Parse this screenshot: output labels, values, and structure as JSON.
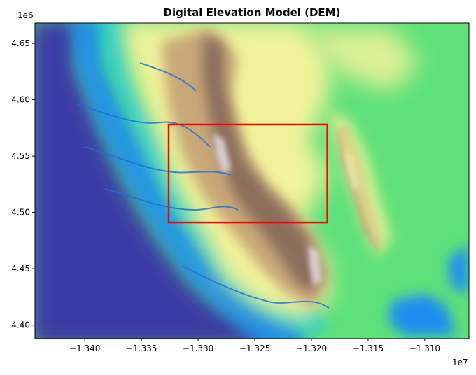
{
  "chart_data": {
    "type": "heatmap",
    "title": "Digital Elevation Model (DEM)",
    "xlabel": "",
    "ylabel": "",
    "colormap": "terrain",
    "x_offset_label": "1e7",
    "y_offset_label": "1e6",
    "xlim": [
      -1.3444,
      -1.3061
    ],
    "ylim": [
      4.388,
      4.668
    ],
    "x_ticks": [
      -1.34,
      -1.335,
      -1.33,
      -1.325,
      -1.32,
      -1.315,
      -1.31
    ],
    "x_tick_labels": [
      "−1.340",
      "−1.335",
      "−1.330",
      "−1.325",
      "−1.320",
      "−1.315",
      "−1.310"
    ],
    "y_ticks": [
      4.4,
      4.45,
      4.5,
      4.55,
      4.6,
      4.65
    ],
    "y_tick_labels": [
      "4.40",
      "4.45",
      "4.50",
      "4.55",
      "4.60",
      "4.65"
    ],
    "grid": false,
    "highlight_box": {
      "x0": -1.3326,
      "x1": -1.3186,
      "y0": 4.491,
      "y1": 4.578,
      "color": "#ff0000"
    },
    "terrain_colors": {
      "low": "#3a3aa6",
      "water_blue": "#1f8ef0",
      "cyan": "#22c9d6",
      "green": "#5fe07a",
      "yellow": "#f2f39a",
      "tan": "#c8a878",
      "brown": "#8a6d5c",
      "peak": "#e6e0ec"
    }
  }
}
